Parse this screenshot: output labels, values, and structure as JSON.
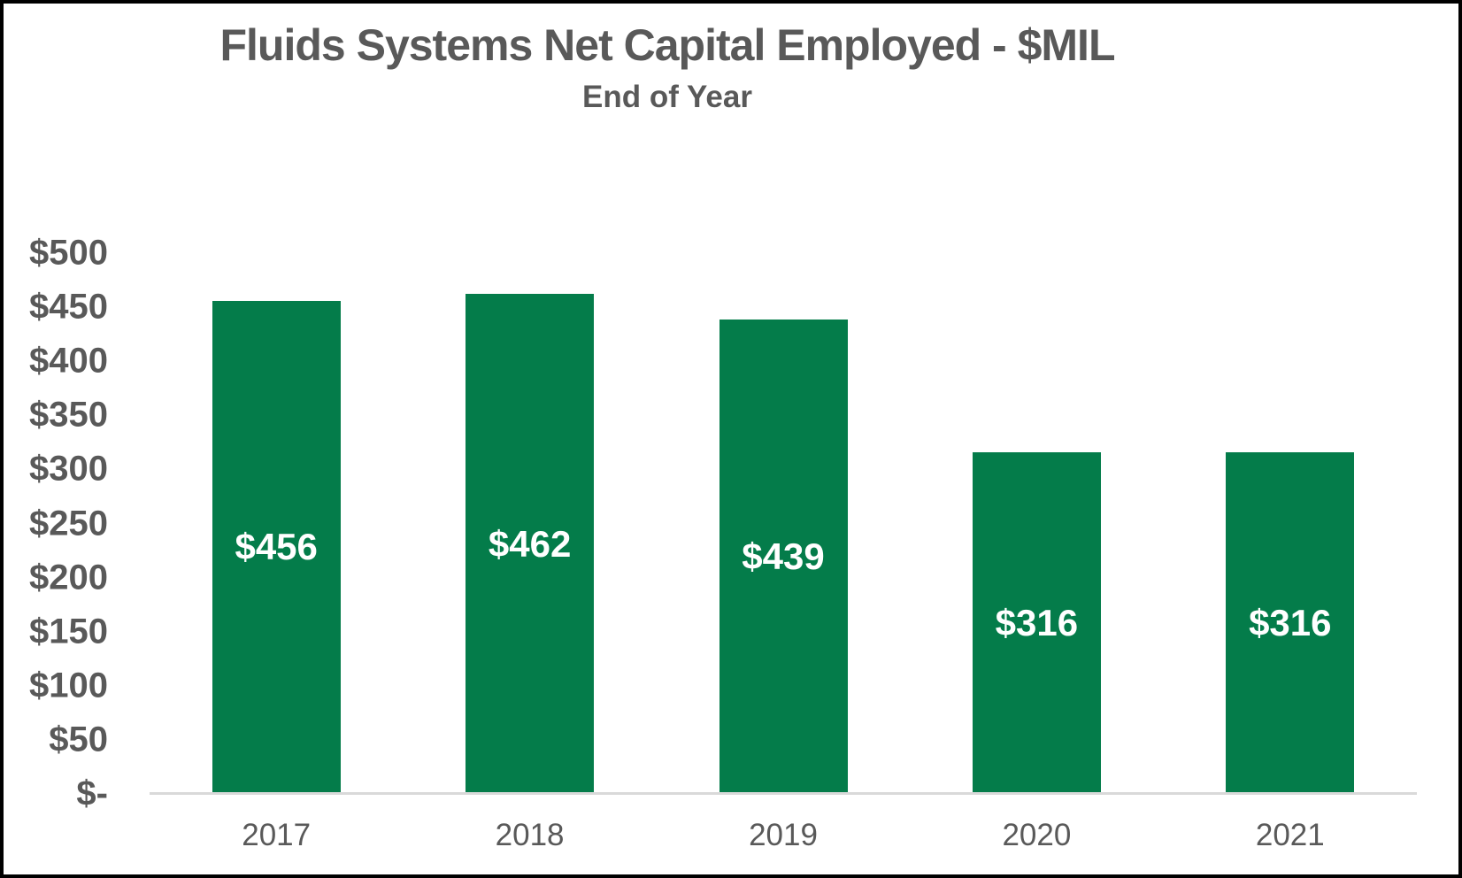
{
  "chart_data": {
    "type": "bar",
    "title": "Fluids Systems Net Capital Employed - $MIL",
    "subtitle": "End of Year",
    "categories": [
      "2017",
      "2018",
      "2019",
      "2020",
      "2021"
    ],
    "values": [
      456,
      462,
      439,
      316,
      316
    ],
    "bar_labels": [
      "$456",
      "$462",
      "$439",
      "$316",
      "$316"
    ],
    "y_ticks": [
      {
        "value": 500,
        "label": "$500"
      },
      {
        "value": 450,
        "label": "$450"
      },
      {
        "value": 400,
        "label": "$400"
      },
      {
        "value": 350,
        "label": "$350"
      },
      {
        "value": 300,
        "label": "$300"
      },
      {
        "value": 250,
        "label": "$250"
      },
      {
        "value": 200,
        "label": "$200"
      },
      {
        "value": 150,
        "label": "$150"
      },
      {
        "value": 100,
        "label": "$100"
      },
      {
        "value": 50,
        "label": "$50"
      },
      {
        "value": 0,
        "label": "$-"
      }
    ],
    "ylim": [
      0,
      500
    ],
    "grid": false,
    "legend": false,
    "colors": {
      "bar": "#047C4A",
      "bar_label": "#FFFFFF",
      "text": "#595959",
      "axis_line": "#D9D9D9",
      "background": "#FFFFFF",
      "frame_border": "#000000"
    }
  }
}
